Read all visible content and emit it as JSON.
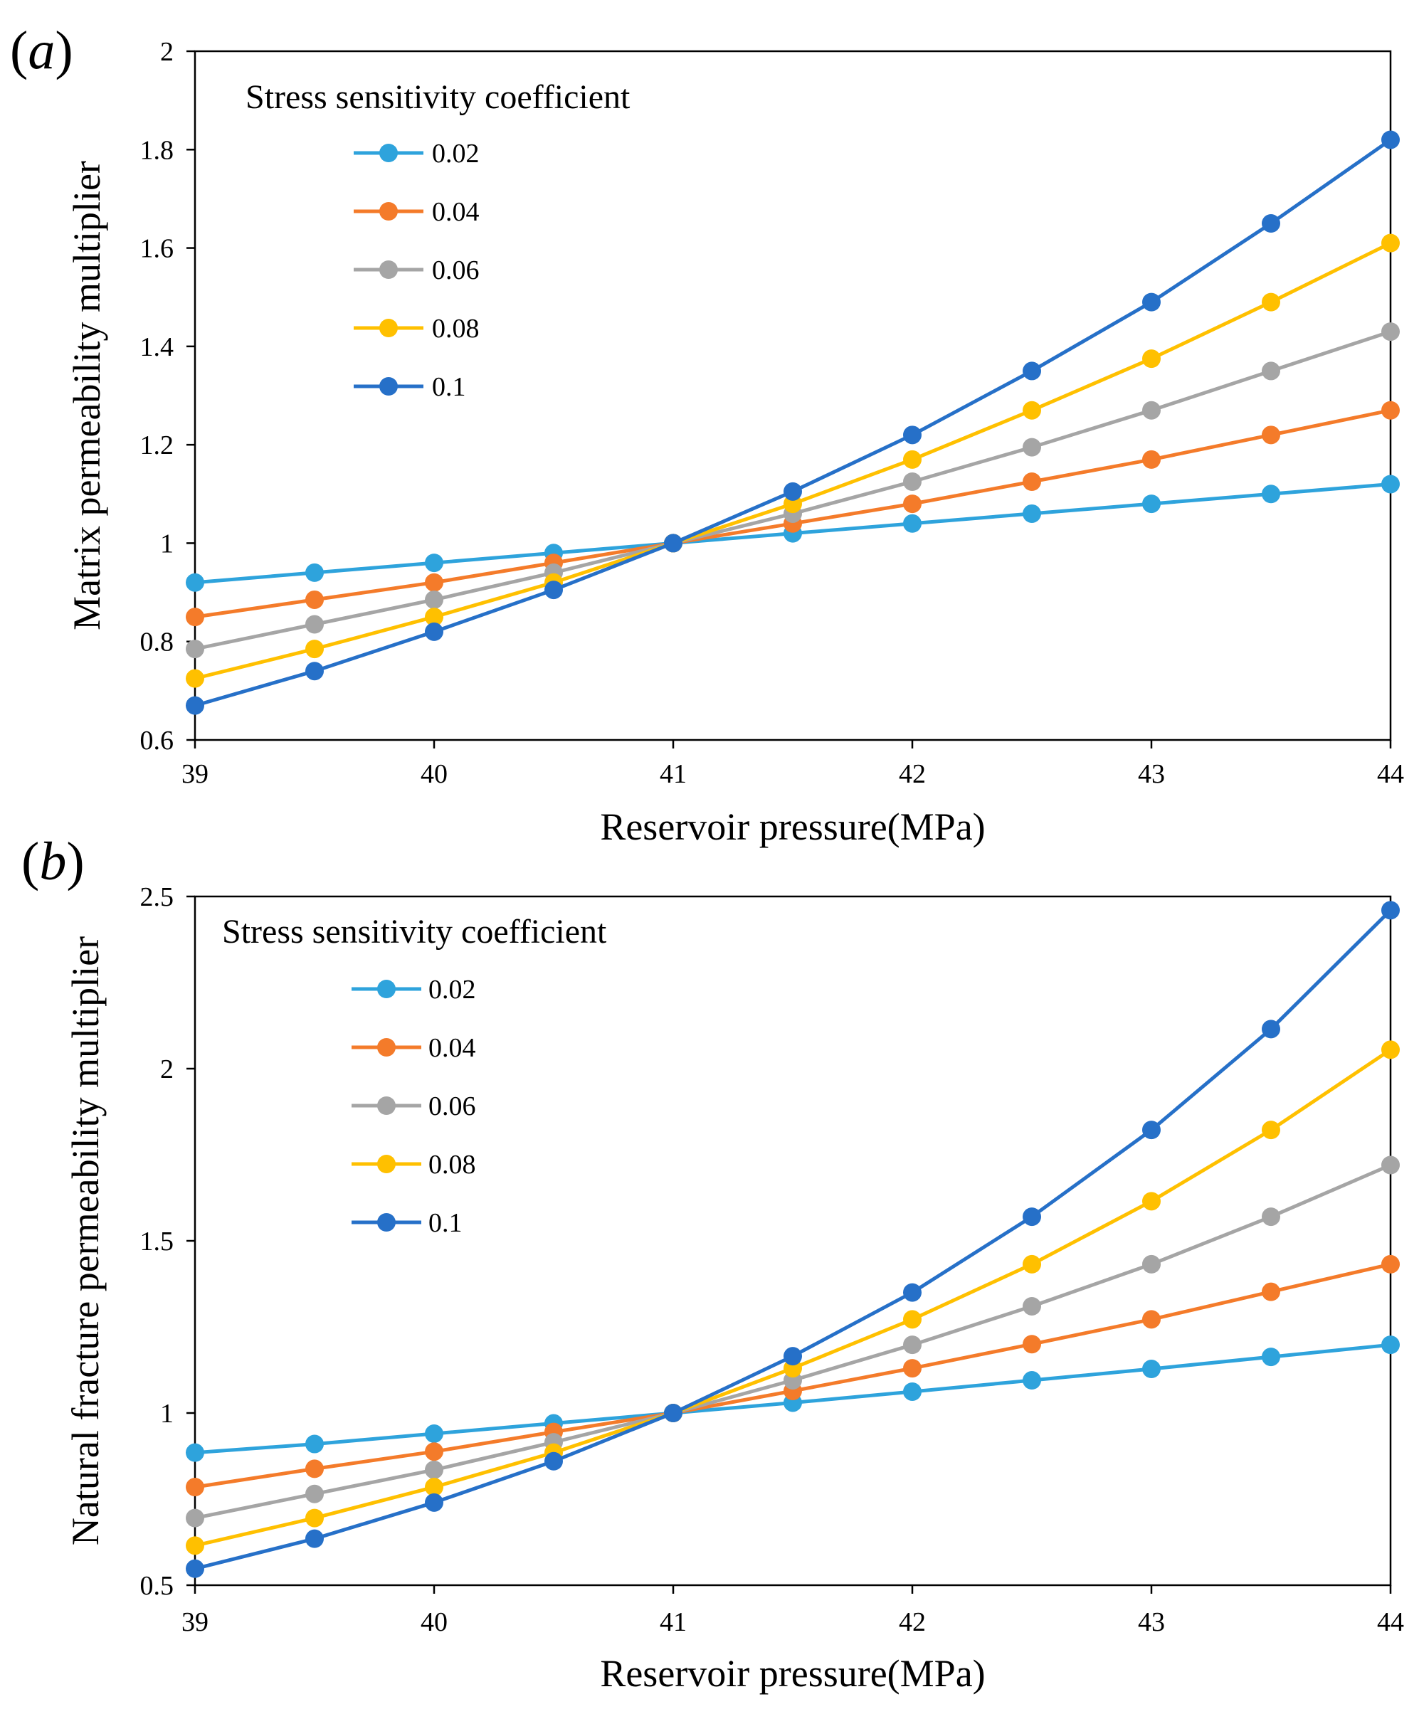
{
  "chart_data": [
    {
      "type": "line",
      "panel_label": "a",
      "title": "",
      "xlabel": "Reservoir pressure(MPa)",
      "ylabel": "Matrix permeability multiplier",
      "xlim": [
        39,
        44
      ],
      "ylim": [
        0.6,
        2
      ],
      "x_ticks": [
        "39",
        "40",
        "41",
        "42",
        "43",
        "44"
      ],
      "y_ticks": [
        "0.6",
        "0.8",
        "1",
        "1.2",
        "1.4",
        "1.6",
        "1.8",
        "2"
      ],
      "grid": false,
      "legend_title": "Stress sensitivity coefficient",
      "legend_position": "top-left",
      "x": [
        39,
        39.5,
        40,
        40.5,
        41,
        41.5,
        42,
        42.5,
        43,
        43.5,
        44
      ],
      "series": [
        {
          "name": "0.02",
          "color": "#2EA3DC",
          "values": [
            0.92,
            0.94,
            0.96,
            0.98,
            1.0,
            1.02,
            1.04,
            1.06,
            1.08,
            1.1,
            1.12
          ]
        },
        {
          "name": "0.04",
          "color": "#F47B2A",
          "values": [
            0.85,
            0.885,
            0.92,
            0.96,
            1.0,
            1.04,
            1.08,
            1.125,
            1.17,
            1.22,
            1.27
          ]
        },
        {
          "name": "0.06",
          "color": "#A5A5A5",
          "values": [
            0.785,
            0.835,
            0.885,
            0.94,
            1.0,
            1.06,
            1.125,
            1.195,
            1.27,
            1.35,
            1.43
          ]
        },
        {
          "name": "0.08",
          "color": "#FFC000",
          "values": [
            0.725,
            0.785,
            0.85,
            0.92,
            1.0,
            1.08,
            1.17,
            1.27,
            1.375,
            1.49,
            1.61
          ]
        },
        {
          "name": "0.1",
          "color": "#2670C8",
          "values": [
            0.67,
            0.74,
            0.82,
            0.905,
            1.0,
            1.105,
            1.22,
            1.35,
            1.49,
            1.65,
            1.82
          ]
        }
      ]
    },
    {
      "type": "line",
      "panel_label": "b",
      "title": "",
      "xlabel": "Reservoir pressure(MPa)",
      "ylabel": "Natural fracture permeability multiplier",
      "xlim": [
        39,
        44
      ],
      "ylim": [
        0.5,
        2.5
      ],
      "x_ticks": [
        "39",
        "40",
        "41",
        "42",
        "43",
        "44"
      ],
      "y_ticks": [
        "0.5",
        "1",
        "1.5",
        "2",
        "2.5"
      ],
      "grid": false,
      "legend_title": "Stress sensitivity coefficient",
      "legend_position": "top-left",
      "x": [
        39,
        39.5,
        40,
        40.5,
        41,
        41.5,
        42,
        42.5,
        43,
        43.5,
        44
      ],
      "series": [
        {
          "name": "0.02",
          "color": "#2EA3DC",
          "values": [
            0.885,
            0.91,
            0.94,
            0.97,
            1.0,
            1.03,
            1.062,
            1.095,
            1.128,
            1.163,
            1.198
          ]
        },
        {
          "name": "0.04",
          "color": "#F47B2A",
          "values": [
            0.785,
            0.838,
            0.888,
            0.945,
            1.0,
            1.064,
            1.13,
            1.2,
            1.272,
            1.352,
            1.432
          ]
        },
        {
          "name": "0.06",
          "color": "#A5A5A5",
          "values": [
            0.695,
            0.765,
            0.835,
            0.915,
            1.0,
            1.095,
            1.198,
            1.31,
            1.432,
            1.57,
            1.72
          ]
        },
        {
          "name": "0.08",
          "color": "#FFC000",
          "values": [
            0.615,
            0.695,
            0.785,
            0.885,
            1.0,
            1.13,
            1.272,
            1.432,
            1.615,
            1.822,
            2.055
          ]
        },
        {
          "name": "0.1",
          "color": "#2670C8",
          "values": [
            0.548,
            0.635,
            0.74,
            0.86,
            1.0,
            1.165,
            1.35,
            1.57,
            1.822,
            2.115,
            2.46
          ]
        }
      ]
    }
  ]
}
